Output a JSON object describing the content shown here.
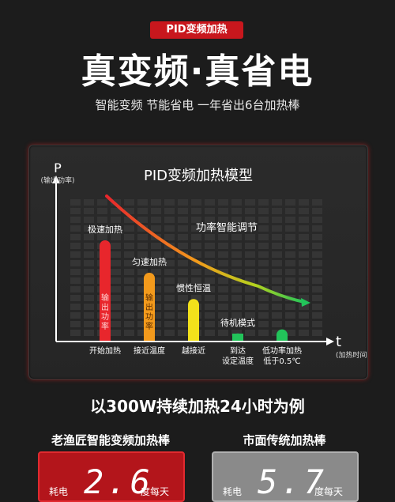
{
  "tag": "PID变频加热",
  "headline": "真变频·真省电",
  "subline": "智能变频 节能省电 一年省出6台加热棒",
  "chart": {
    "title": "PID变频加热模型",
    "y_axis": "P",
    "y_axis_sub": "(输出功率)",
    "x_axis": "t",
    "x_axis_sub": "(加热时间)",
    "curve_label": "功率智能调节",
    "bar_vertical_label": [
      "输",
      "出",
      "功",
      "率"
    ],
    "colors": {
      "red": "#e8262c",
      "orange": "#f39a1c",
      "yellow": "#f2e11b",
      "green": "#22c45a"
    }
  },
  "chart_data": {
    "type": "bar",
    "categories": [
      "开始加热",
      "接近温度",
      "越接近",
      "到达设定温度",
      "低功率加热低于0.5℃"
    ],
    "bar_labels": [
      "极速加热",
      "匀速加热",
      "惯性恒温",
      "待机模式",
      ""
    ],
    "x_labels": [
      [
        "开始加热"
      ],
      [
        "接近温度"
      ],
      [
        "越接近"
      ],
      [
        "到达",
        "设定温度"
      ],
      [
        "低功率加热",
        "低于0.5℃"
      ]
    ],
    "values": [
      100,
      68,
      42,
      8,
      12
    ],
    "xlabel": "t",
    "ylabel": "P"
  },
  "compare_title": "以300W持续加热24小时为例",
  "left": {
    "title": "老渔匠智能变频加热棒",
    "label1": "耗电",
    "number": "2.6",
    "label2": "度每天"
  },
  "right": {
    "title": "市面传统加热棒",
    "label1": "耗电",
    "number": "5.7",
    "label2": "度每天"
  }
}
